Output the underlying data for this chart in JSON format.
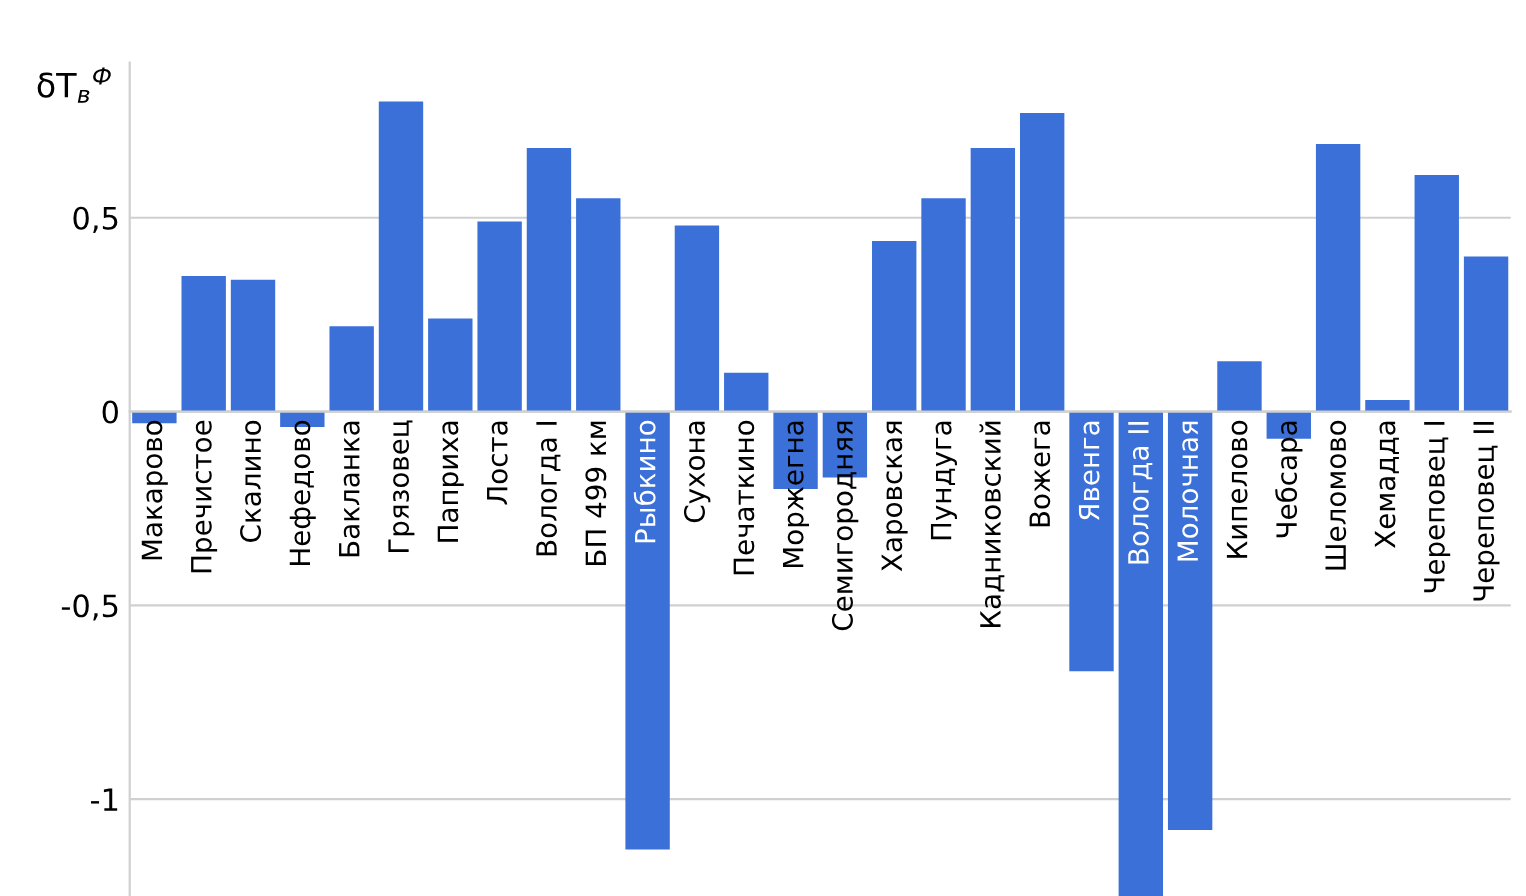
{
  "chart_data": {
    "type": "bar",
    "ylabel": "δT$_{в}$$^{Ф}$",
    "categories": [
      "Макарово",
      "Пречистое",
      "Скалино",
      "Нефедово",
      "Бакланка",
      "Грязовец",
      "Паприха",
      "Лоста",
      "Вологда I",
      "БП 499 км",
      "Рыбкино",
      "Сухона",
      "Печаткино",
      "Моржегна",
      "Семигородняя",
      "Харовская",
      "Пундуга",
      "Кадниковский",
      "Вожега",
      "Явенга",
      "Вологда II",
      "Молочная",
      "Кипелово",
      "Чебсара",
      "Шеломово",
      "Хемадда",
      "Череповец I",
      "Череповец II"
    ],
    "values": [
      -0.03,
      0.35,
      0.34,
      -0.04,
      0.22,
      0.8,
      0.24,
      0.49,
      0.68,
      0.55,
      -1.13,
      0.48,
      0.1,
      -0.2,
      -0.17,
      0.44,
      0.55,
      0.68,
      0.77,
      -0.67,
      -1.25,
      -1.08,
      0.13,
      -0.07,
      0.69,
      0.03,
      0.61,
      0.4
    ],
    "color": "#3a70d8",
    "ylim": [
      -1.25,
      0.9
    ],
    "yticks": [
      {
        "value": -1,
        "label": "-1"
      },
      {
        "value": -0.5,
        "label": "-0,5"
      },
      {
        "value": 0,
        "label": "0"
      },
      {
        "value": 0.5,
        "label": "0,5"
      }
    ],
    "grid": "y",
    "legend": false
  }
}
